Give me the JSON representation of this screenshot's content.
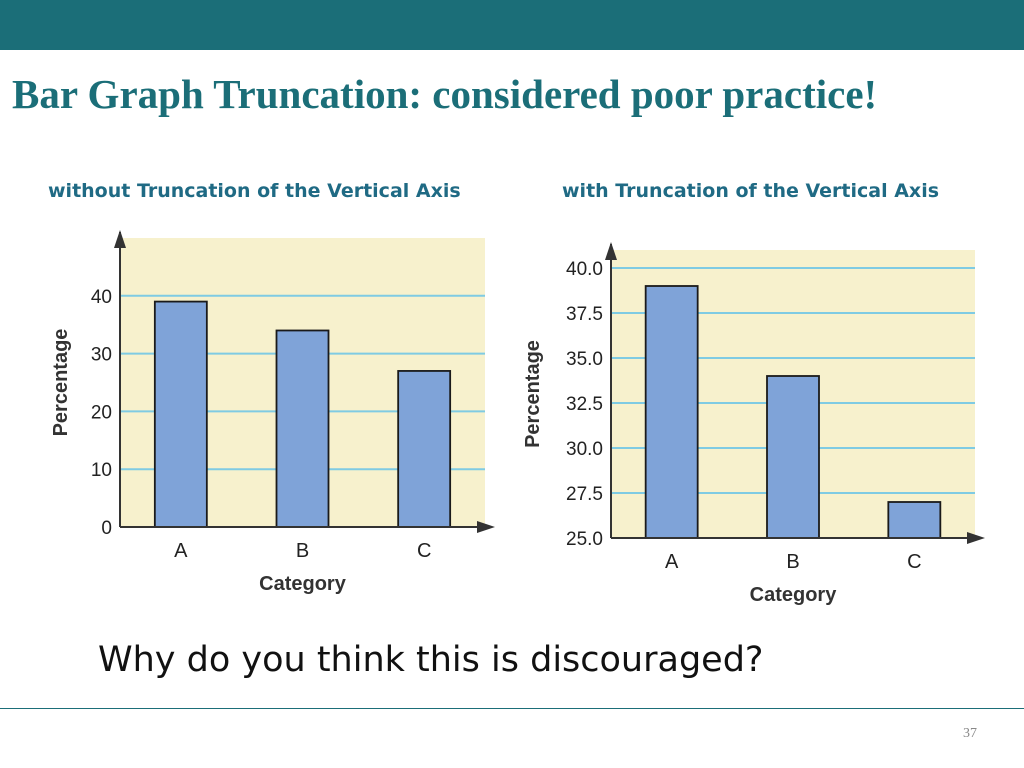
{
  "slide": {
    "title": "Bar Graph Truncation: considered poor practice!",
    "question": "Why do you think this is discouraged?",
    "page_number": "37"
  },
  "colors": {
    "header_bar": "#1b6e78",
    "title": "#1b6e78",
    "caption": "#1f6a84",
    "plot_background": "#f7f1cd",
    "gridline": "#7fcbe3",
    "bar_fill": "#7fa3d8",
    "bar_outline": "#1a1a1a"
  },
  "chart_data": [
    {
      "type": "bar",
      "title": "without Truncation of the Vertical Axis",
      "xlabel": "Category",
      "ylabel": "Percentage",
      "categories": [
        "A",
        "B",
        "C"
      ],
      "values": [
        39,
        34,
        27
      ],
      "ylim": [
        0,
        50
      ],
      "yticks": [
        0,
        10,
        20,
        30,
        40
      ],
      "ytick_labels": [
        "0",
        "10",
        "20",
        "30",
        "40"
      ],
      "grid": true
    },
    {
      "type": "bar",
      "title": "with Truncation of the Vertical Axis",
      "xlabel": "Category",
      "ylabel": "Percentage",
      "categories": [
        "A",
        "B",
        "C"
      ],
      "values": [
        39,
        34,
        27
      ],
      "ylim": [
        25,
        41
      ],
      "yticks": [
        25,
        27.5,
        30,
        32.5,
        35,
        37.5,
        40
      ],
      "ytick_labels": [
        "25.0",
        "27.5",
        "30.0",
        "32.5",
        "35.0",
        "37.5",
        "40.0"
      ],
      "grid": true
    }
  ]
}
